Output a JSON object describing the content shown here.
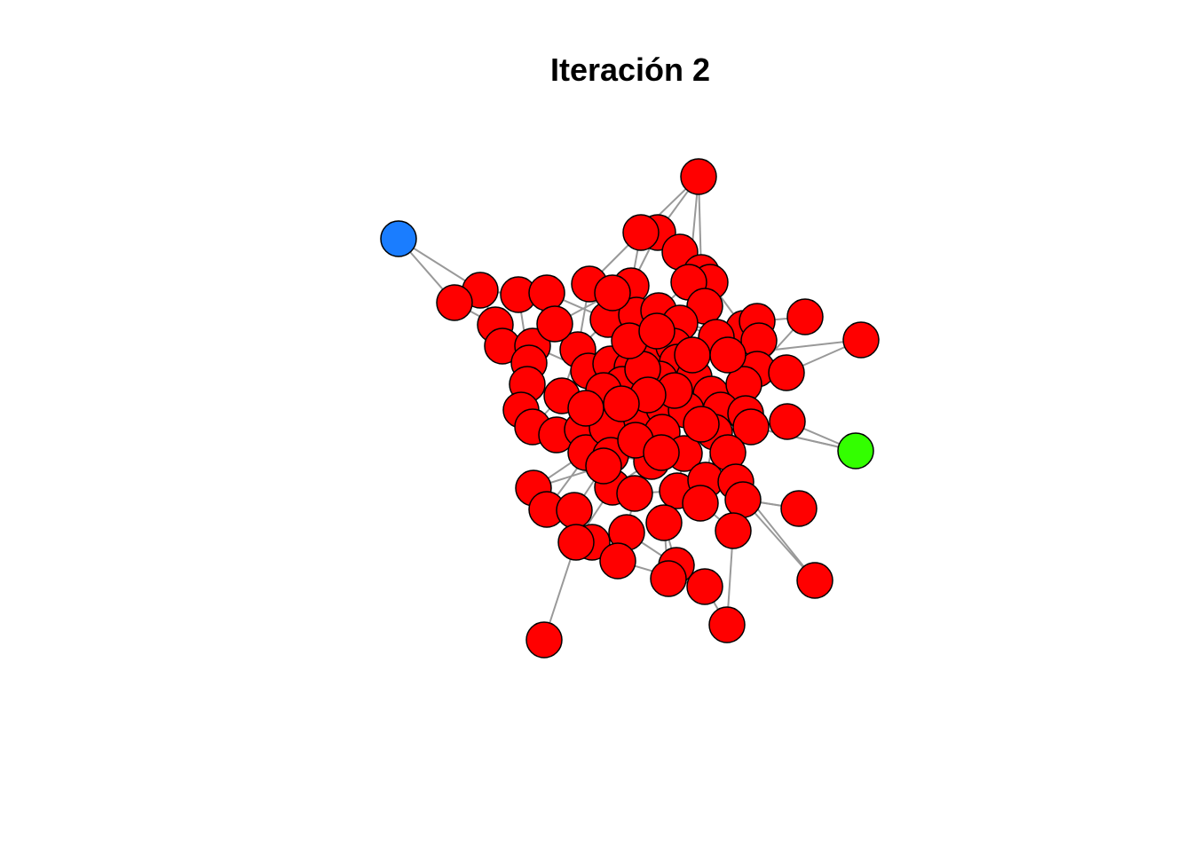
{
  "title": "Iteración 2",
  "colors": {
    "infected": "#ff0000",
    "seed_blue": "#1a7dff",
    "seed_green": "#33ff00",
    "edge": "#999999"
  },
  "node_count": 105
}
